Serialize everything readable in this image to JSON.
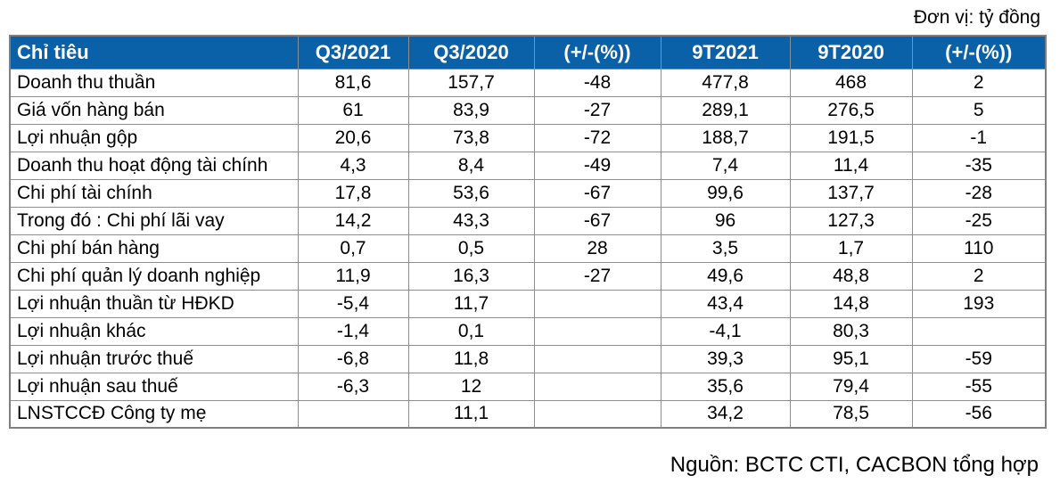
{
  "meta": {
    "unit_label": "Đơn vị: tỷ đồng",
    "source_label": "Nguồn: BCTC CTI, CACBON tổng hợp"
  },
  "colors": {
    "header_bg": "#0B61A8",
    "header_text": "#FFFFFF",
    "grid_line": "#8E8E8E",
    "outer_border": "#7F7F7F",
    "body_text": "#000000",
    "page_bg": "#FFFFFF"
  },
  "table": {
    "columns": [
      "Chỉ tiêu",
      "Q3/2021",
      "Q3/2020",
      "(+/-(%))",
      "9T2021",
      "9T2020",
      "(+/-(%))"
    ],
    "rows": [
      {
        "label": "Doanh thu thuần",
        "values": [
          "81,6",
          "157,7",
          "-48",
          "477,8",
          "468",
          "2"
        ]
      },
      {
        "label": "Giá vốn hàng bán",
        "values": [
          "61",
          "83,9",
          "-27",
          "289,1",
          "276,5",
          "5"
        ]
      },
      {
        "label": "Lợi nhuận gộp",
        "values": [
          "20,6",
          "73,8",
          "-72",
          "188,7",
          "191,5",
          "-1"
        ]
      },
      {
        "label": "Doanh thu hoạt động tài chính",
        "values": [
          "4,3",
          "8,4",
          "-49",
          "7,4",
          "11,4",
          "-35"
        ]
      },
      {
        "label": "Chi phí tài chính",
        "values": [
          "17,8",
          "53,6",
          "-67",
          "99,6",
          "137,7",
          "-28"
        ]
      },
      {
        "label": "Trong đó : Chi phí lãi vay",
        "values": [
          "14,2",
          "43,3",
          "-67",
          "96",
          "127,3",
          "-25"
        ]
      },
      {
        "label": "Chi phí bán hàng",
        "values": [
          "0,7",
          "0,5",
          "28",
          "3,5",
          "1,7",
          "110"
        ]
      },
      {
        "label": "Chi phí quản lý doanh nghiệp",
        "values": [
          "11,9",
          "16,3",
          "-27",
          "49,6",
          "48,8",
          "2"
        ]
      },
      {
        "label": "Lợi nhuận thuần từ HĐKD",
        "values": [
          "-5,4",
          "11,7",
          "",
          "43,4",
          "14,8",
          "193"
        ]
      },
      {
        "label": "Lợi nhuận khác",
        "values": [
          "-1,4",
          "0,1",
          "",
          "-4,1",
          "80,3",
          ""
        ]
      },
      {
        "label": "Lợi nhuận trước thuế",
        "values": [
          "-6,8",
          "11,8",
          "",
          "39,3",
          "95,1",
          "-59"
        ]
      },
      {
        "label": "Lợi nhuận sau thuế",
        "values": [
          "-6,3",
          "12",
          "",
          "35,6",
          "79,4",
          "-55"
        ]
      },
      {
        "label": "LNSTCCĐ Công ty mẹ",
        "values": [
          "",
          "11,1",
          "",
          "34,2",
          "78,5",
          "-56"
        ]
      }
    ]
  }
}
